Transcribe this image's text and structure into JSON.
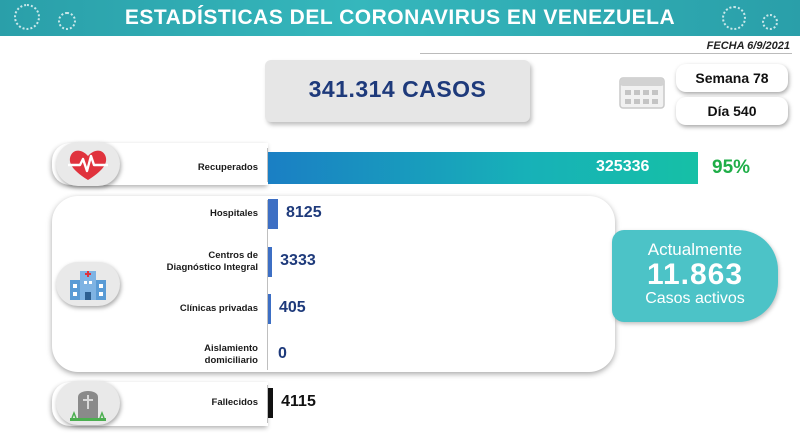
{
  "header": {
    "title": "ESTADÍSTICAS DEL CORONAVIRUS EN VENEZUELA",
    "date": "FECHA 6/9/2021"
  },
  "total_cases": "341.314 CASOS",
  "week": "Semana 78",
  "day": "Día 540",
  "active": {
    "line1": "Actualmente",
    "value": "11.863",
    "line3": "Casos activos"
  },
  "colors": {
    "banner": "#2a9fa9",
    "accent_teal": "#4cc3c7",
    "value_blue": "#1e3a7b",
    "percent_green": "#1fae48"
  },
  "icons": [
    "heart-pulse-icon",
    "hospital-icon",
    "gravestone-icon",
    "calendar-icon",
    "virus-icon"
  ],
  "chart_data": {
    "type": "bar",
    "orientation": "horizontal",
    "categories": [
      "Recuperados",
      "Hospitales",
      "Centros de Diagnóstico Integral",
      "Clínicas privadas",
      "Aislamiento domiciliario",
      "Fallecidos"
    ],
    "category_lines": [
      [
        "Recuperados"
      ],
      [
        "Hospitales"
      ],
      [
        "Centros de",
        "Diagnóstico Integral"
      ],
      [
        "Clínicas privadas"
      ],
      [
        "Aislamiento",
        "domiciliario"
      ],
      [
        "Fallecidos"
      ]
    ],
    "values": [
      325336,
      8125,
      3333,
      405,
      0,
      4115
    ],
    "value_labels": [
      "325336",
      "8125",
      "3333",
      "405",
      "0",
      "4115"
    ],
    "recovered_percent": "95%",
    "bar_colors": [
      "#1a8fc8",
      "#3d6fc4",
      "#3d6fc4",
      "#3d6fc4",
      "#3d6fc4",
      "#111111"
    ]
  }
}
